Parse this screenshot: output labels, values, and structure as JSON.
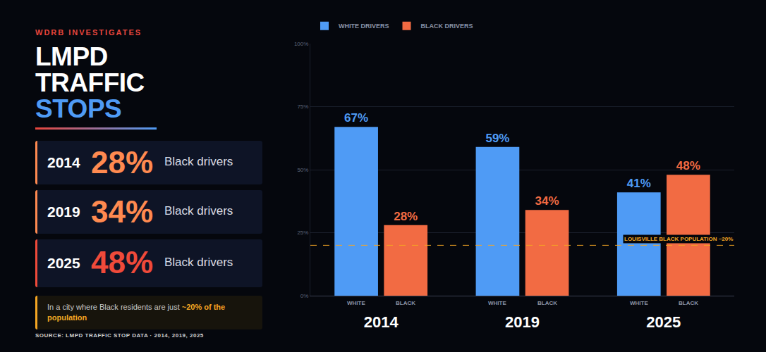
{
  "header": {
    "kicker": "WDRB INVESTIGATES",
    "title": [
      "LMPD",
      "TRAFFIC",
      "STOPS"
    ]
  },
  "cards": [
    {
      "year": "2014",
      "value": "28%",
      "text": "Black drivers"
    },
    {
      "year": "2019",
      "value": "34%",
      "text": "Black drivers"
    },
    {
      "year": "2025",
      "value": "48%",
      "text": "Black drivers"
    }
  ],
  "note": {
    "text": "In a city where Black residents are just",
    "highlight": "~20% of the population"
  },
  "source": "SOURCE: LMPD TRAFFIC STOP DATA · 2014, 2019, 2025",
  "chart_data": {
    "type": "bar",
    "categories": [
      "2014",
      "2019",
      "2025"
    ],
    "series": [
      {
        "name": "WHITE DRIVERS",
        "sublabel": "WHITE",
        "color": "#4f9bf5",
        "values": [
          67,
          59,
          41
        ],
        "value_labels": [
          "67%",
          "59%",
          "41%"
        ]
      },
      {
        "name": "BLACK DRIVERS",
        "sublabel": "BLACK",
        "color": "#f26b43",
        "values": [
          28,
          34,
          48
        ],
        "value_labels": [
          "28%",
          "34%",
          "48%"
        ]
      }
    ],
    "ylim": [
      0,
      100
    ],
    "yticks": [
      {
        "value": 0,
        "label": "0%"
      },
      {
        "value": 25,
        "label": "25%"
      },
      {
        "value": 50,
        "label": "50%"
      },
      {
        "value": 75,
        "label": "75%"
      },
      {
        "value": 100,
        "label": "100%"
      }
    ],
    "grid": true,
    "data_labels": true,
    "legend": "top left",
    "hline": {
      "value": 20,
      "label": "LOUISVILLE BLACK POPULATION ~20%"
    }
  }
}
